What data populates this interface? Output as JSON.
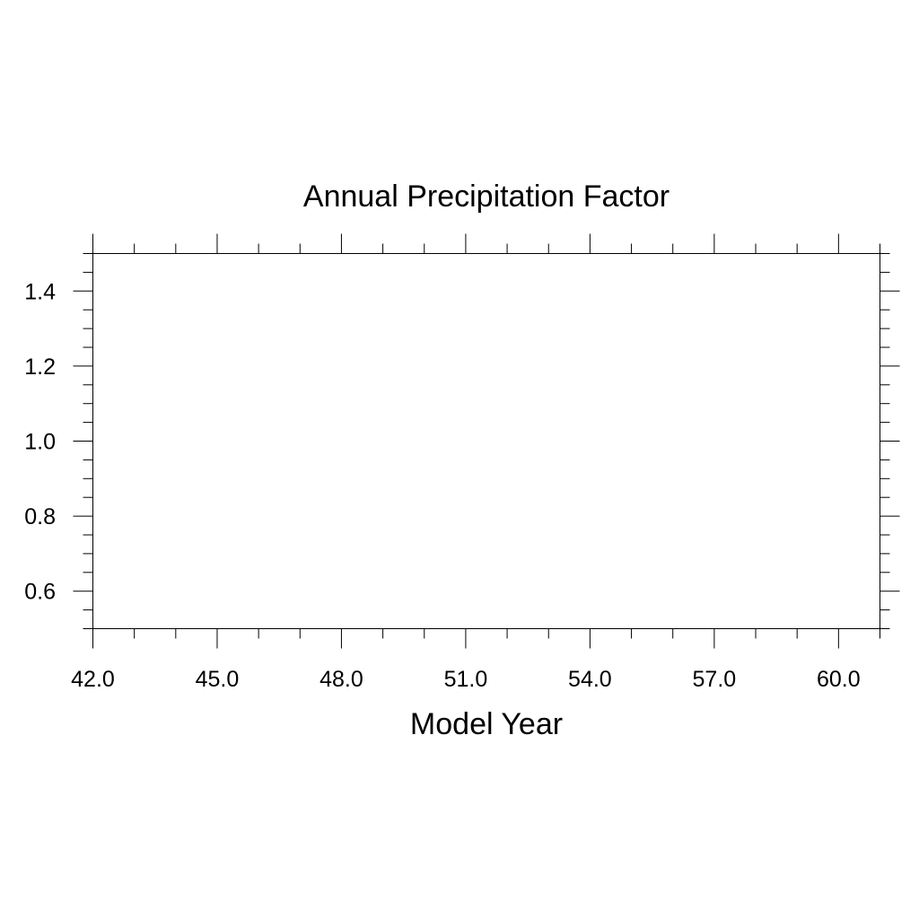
{
  "chart_data": {
    "type": "line",
    "title": "Annual Precipitation Factor",
    "xlabel": "Model Year",
    "ylabel": "",
    "xlim": [
      42.0,
      61.0
    ],
    "ylim": [
      0.5,
      1.5
    ],
    "x_ticks": [
      42.0,
      45.0,
      48.0,
      51.0,
      54.0,
      57.0,
      60.0
    ],
    "x_tick_labels": [
      "42.0",
      "45.0",
      "48.0",
      "51.0",
      "54.0",
      "57.0",
      "60.0"
    ],
    "x_minor_step": 1.0,
    "y_ticks": [
      0.6,
      0.8,
      1.0,
      1.2,
      1.4
    ],
    "y_tick_labels": [
      "0.6",
      "0.8",
      "1.0",
      "1.2",
      "1.4"
    ],
    "y_minor_step": 0.05,
    "grid": false,
    "series": []
  }
}
